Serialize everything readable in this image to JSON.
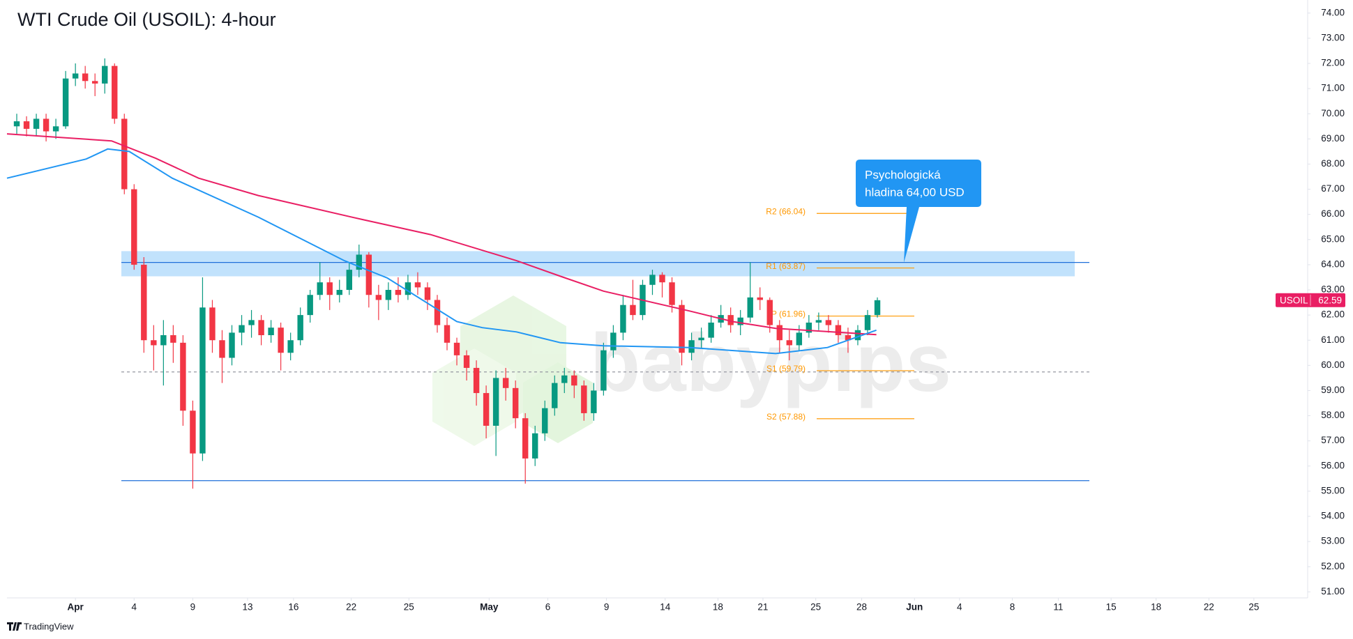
{
  "chart_data": {
    "type": "candlestick",
    "title": "WTI Crude Oil (USOIL): 4-hour",
    "symbol": "USOIL",
    "last_price": 62.59,
    "up_color": "#089981",
    "down_color": "#f23645",
    "candles": {
      "open": [
        69.5,
        69.7,
        69.4,
        69.8,
        69.3,
        69.5,
        71.4,
        71.6,
        71.3,
        71.2,
        71.9,
        69.8,
        67.0,
        64.0,
        61.0,
        60.8,
        61.2,
        60.9,
        58.2,
        56.5,
        62.3,
        61.0,
        60.3,
        61.3,
        61.6,
        61.8,
        61.2,
        61.5,
        60.5,
        61.0,
        62.0,
        62.8,
        63.3,
        62.8,
        63.0,
        63.8,
        64.4,
        62.8,
        62.6,
        63.0,
        62.8,
        63.3,
        63.1,
        62.6,
        61.6,
        60.9,
        60.4,
        59.9,
        58.9,
        57.6,
        59.5,
        59.1,
        57.9,
        56.3,
        57.3,
        58.3,
        59.3,
        59.6,
        59.2,
        58.1,
        59.0,
        60.6,
        61.3,
        62.4,
        62.0,
        63.2,
        63.6,
        63.3,
        62.4,
        60.5,
        61.0,
        61.1,
        61.7,
        62.0,
        61.6,
        61.9,
        62.7,
        62.6,
        61.6,
        61.0,
        60.8,
        61.3,
        61.7,
        61.8,
        61.6,
        61.2,
        61.0,
        61.4,
        62.0
      ],
      "high": [
        70.0,
        69.9,
        70.0,
        70.0,
        69.8,
        71.7,
        72.0,
        71.9,
        71.6,
        72.2,
        72.0,
        70.0,
        67.2,
        64.3,
        61.6,
        61.8,
        61.6,
        61.2,
        58.6,
        63.5,
        62.6,
        61.4,
        61.6,
        62.0,
        62.2,
        62.0,
        61.8,
        61.7,
        61.3,
        62.3,
        63.0,
        64.1,
        63.5,
        63.4,
        64.1,
        64.8,
        64.5,
        63.2,
        63.3,
        63.5,
        63.6,
        63.7,
        63.3,
        62.8,
        61.9,
        61.1,
        60.6,
        60.2,
        59.2,
        59.8,
        59.9,
        59.4,
        58.1,
        57.6,
        58.6,
        59.6,
        59.9,
        59.8,
        59.4,
        59.3,
        60.9,
        61.6,
        62.8,
        63.4,
        63.4,
        63.8,
        63.7,
        63.5,
        62.6,
        61.3,
        61.5,
        62.0,
        62.4,
        62.3,
        62.2,
        64.1,
        63.1,
        62.7,
        61.8,
        61.4,
        61.6,
        62.0,
        62.1,
        62.0,
        61.8,
        61.5,
        61.6,
        62.2,
        62.7
      ],
      "low": [
        69.2,
        69.1,
        69.1,
        68.9,
        69.0,
        69.4,
        71.1,
        71.0,
        70.7,
        70.8,
        69.6,
        66.8,
        63.8,
        60.5,
        59.8,
        59.2,
        60.1,
        57.6,
        55.1,
        56.2,
        60.5,
        59.3,
        60.0,
        60.8,
        61.1,
        60.8,
        60.9,
        59.8,
        60.2,
        60.8,
        61.7,
        62.6,
        62.2,
        62.5,
        62.8,
        63.5,
        62.3,
        61.8,
        62.2,
        62.5,
        62.6,
        62.8,
        62.2,
        61.3,
        60.6,
        60.0,
        59.4,
        58.4,
        57.1,
        56.4,
        58.6,
        57.5,
        55.3,
        56.0,
        57.0,
        58.0,
        58.9,
        58.7,
        57.8,
        57.8,
        58.8,
        60.3,
        61.0,
        61.8,
        61.8,
        62.8,
        62.7,
        62.1,
        60.0,
        60.2,
        60.7,
        60.9,
        61.5,
        61.3,
        61.2,
        61.7,
        62.2,
        61.3,
        60.5,
        60.2,
        60.6,
        61.1,
        61.4,
        61.3,
        60.9,
        60.5,
        60.8,
        61.2,
        61.9
      ],
      "close": [
        69.7,
        69.4,
        69.8,
        69.3,
        69.5,
        71.4,
        71.6,
        71.3,
        71.2,
        71.9,
        69.8,
        67.0,
        64.0,
        61.0,
        60.8,
        61.2,
        60.9,
        58.2,
        56.5,
        62.3,
        61.0,
        60.3,
        61.3,
        61.6,
        61.8,
        61.2,
        61.5,
        60.5,
        61.0,
        62.0,
        62.8,
        63.3,
        62.8,
        63.0,
        63.8,
        64.4,
        62.8,
        62.6,
        63.0,
        62.8,
        63.3,
        63.1,
        62.6,
        61.6,
        60.9,
        60.4,
        59.9,
        58.9,
        57.6,
        59.5,
        59.1,
        57.9,
        56.3,
        57.3,
        58.3,
        59.3,
        59.6,
        59.2,
        58.1,
        59.0,
        60.6,
        61.3,
        62.4,
        62.0,
        63.2,
        63.6,
        63.3,
        62.4,
        60.5,
        61.0,
        61.1,
        61.7,
        62.0,
        61.6,
        61.9,
        62.7,
        62.6,
        61.6,
        61.0,
        60.8,
        61.3,
        61.7,
        61.8,
        61.6,
        61.2,
        61.0,
        61.4,
        62.0,
        62.59
      ]
    },
    "moving_averages": [
      {
        "color": "#e91e63",
        "x": [
          -1.0,
          9.7,
          14.2,
          18.6,
          24.7,
          35.3,
          42.3,
          51.1,
          55.6,
          60.0,
          68.8,
          73.2,
          77.6,
          87.9
        ],
        "values": [
          69.2,
          68.92,
          68.23,
          67.44,
          66.75,
          65.8,
          65.2,
          64.16,
          63.54,
          62.95,
          62.16,
          61.74,
          61.47,
          61.22
        ]
      },
      {
        "color": "#2196f3",
        "x": [
          -1.0,
          7.1,
          9.3,
          11.5,
          15.9,
          24.7,
          33.5,
          37.9,
          45.0,
          47.6,
          51.1,
          55.6,
          60.0,
          68.8,
          77.6,
          82.9,
          87.9
        ],
        "values": [
          67.44,
          68.2,
          68.6,
          68.5,
          67.44,
          65.89,
          64.16,
          63.47,
          61.74,
          61.5,
          61.33,
          60.9,
          60.78,
          60.71,
          60.47,
          60.71,
          61.4
        ]
      }
    ],
    "zone": [
      63.54,
      64.54
    ],
    "levels": [
      {
        "value": 64.09,
        "color": "#1e6fd9",
        "style": "solid"
      },
      {
        "value": 55.42,
        "color": "#1e6fd9",
        "style": "solid"
      },
      {
        "value": 59.74,
        "color": "#9598a1",
        "style": "dashed"
      }
    ],
    "pivot_color": "#ff9800",
    "pivots": [
      {
        "label": "R2 (66.04)",
        "value": 66.04
      },
      {
        "label": "R1 (63.87)",
        "value": 63.87
      },
      {
        "label": "P (61.96)",
        "value": 61.96
      },
      {
        "label": "S1 (59.79)",
        "value": 59.79
      },
      {
        "label": "S2 (57.88)",
        "value": 57.88
      }
    ],
    "annotation": {
      "lines": [
        "Psychologická",
        "hladina 64,00 USD"
      ]
    },
    "watermark": "babypips",
    "footer": "TradingView",
    "xlim": [
      -1,
      132
    ],
    "ylim": [
      50.76,
      74.52
    ],
    "xticks": [
      {
        "value": 6,
        "label": "Apr"
      },
      {
        "value": 12,
        "label": "4"
      },
      {
        "value": 18,
        "label": "9"
      },
      {
        "value": 23.6,
        "label": "13"
      },
      {
        "value": 28.3,
        "label": "16"
      },
      {
        "value": 34.2,
        "label": "22"
      },
      {
        "value": 40.1,
        "label": "25"
      },
      {
        "value": 48.3,
        "label": "May"
      },
      {
        "value": 54.3,
        "label": "6"
      },
      {
        "value": 60.3,
        "label": "9"
      },
      {
        "value": 66.3,
        "label": "14"
      },
      {
        "value": 71.7,
        "label": "18"
      },
      {
        "value": 76.3,
        "label": "21"
      },
      {
        "value": 81.7,
        "label": "25"
      },
      {
        "value": 86.4,
        "label": "28"
      },
      {
        "value": 91.8,
        "label": "Jun"
      },
      {
        "value": 96.4,
        "label": "4"
      },
      {
        "value": 101.8,
        "label": "8"
      },
      {
        "value": 106.5,
        "label": "11"
      },
      {
        "value": 111.9,
        "label": "15"
      },
      {
        "value": 116.5,
        "label": "18"
      },
      {
        "value": 121.9,
        "label": "22"
      },
      {
        "value": 126.5,
        "label": "25"
      }
    ],
    "yticks": [
      {
        "value": 51,
        "label": "51.00"
      },
      {
        "value": 52,
        "label": "52.00"
      },
      {
        "value": 53,
        "label": "53.00"
      },
      {
        "value": 54,
        "label": "54.00"
      },
      {
        "value": 55,
        "label": "55.00"
      },
      {
        "value": 56,
        "label": "56.00"
      },
      {
        "value": 57,
        "label": "57.00"
      },
      {
        "value": 58,
        "label": "58.00"
      },
      {
        "value": 59,
        "label": "59.00"
      },
      {
        "value": 60,
        "label": "60.00"
      },
      {
        "value": 61,
        "label": "61.00"
      },
      {
        "value": 62,
        "label": "62.00"
      },
      {
        "value": 63,
        "label": "63.00"
      },
      {
        "value": 64,
        "label": "64.00"
      },
      {
        "value": 65,
        "label": "65.00"
      },
      {
        "value": 66,
        "label": "66.00"
      },
      {
        "value": 67,
        "label": "67.00"
      },
      {
        "value": 68,
        "label": "68.00"
      },
      {
        "value": 69,
        "label": "69.00"
      },
      {
        "value": 70,
        "label": "70.00"
      },
      {
        "value": 71,
        "label": "71.00"
      },
      {
        "value": 72,
        "label": "72.00"
      },
      {
        "value": 73,
        "label": "73.00"
      },
      {
        "value": 74,
        "label": "74.00"
      }
    ],
    "grid": false
  }
}
